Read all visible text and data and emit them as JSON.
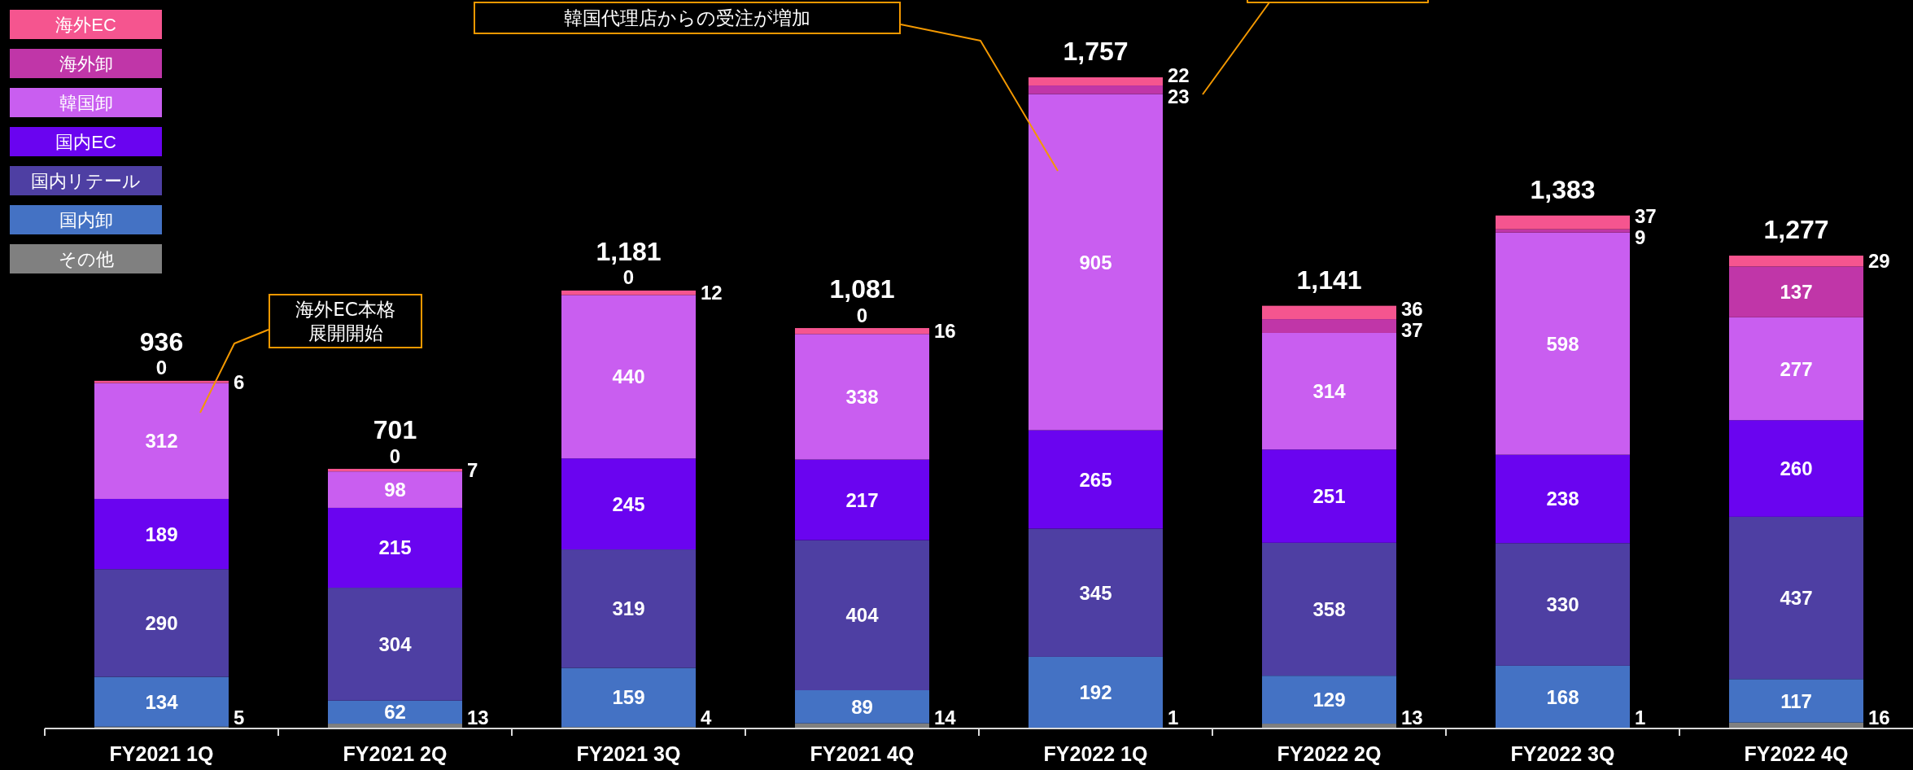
{
  "chart_data": {
    "type": "bar",
    "stacked": true,
    "categories": [
      "FY2021 1Q",
      "FY2021 2Q",
      "FY2021 3Q",
      "FY2021 4Q",
      "FY2022 1Q",
      "FY2022 2Q",
      "FY2022 3Q",
      "FY2022 4Q"
    ],
    "series": [
      {
        "name": "その他",
        "color": "#808080",
        "values": [
          5,
          13,
          4,
          14,
          1,
          13,
          1,
          16
        ]
      },
      {
        "name": "国内卸",
        "color": "#4472C4",
        "values": [
          134,
          62,
          159,
          89,
          192,
          129,
          168,
          117
        ]
      },
      {
        "name": "国内リテール",
        "color": "#4E3FA3",
        "values": [
          290,
          304,
          319,
          404,
          345,
          358,
          330,
          437
        ]
      },
      {
        "name": "国内EC",
        "color": "#6A04F0",
        "values": [
          189,
          215,
          245,
          217,
          265,
          251,
          238,
          260
        ]
      },
      {
        "name": "韓国卸",
        "color": "#C95EF0",
        "values": [
          312,
          98,
          440,
          338,
          905,
          314,
          598,
          277
        ]
      },
      {
        "name": "海外卸",
        "color": "#C036A8",
        "values": [
          0,
          0,
          0,
          0,
          23,
          37,
          9,
          137
        ]
      },
      {
        "name": "海外EC",
        "color": "#F5558F",
        "values": [
          6,
          7,
          12,
          16,
          22,
          36,
          37,
          29
        ]
      }
    ],
    "data_labels": true,
    "totals": [
      "936",
      "701",
      "1,181",
      "1,081",
      "1,757",
      "1,141",
      "1,383",
      "1,277"
    ],
    "legend": "top left",
    "annotations": [
      "韓国代理店からの受注が増加",
      "海外EC本格展開開始"
    ]
  }
}
